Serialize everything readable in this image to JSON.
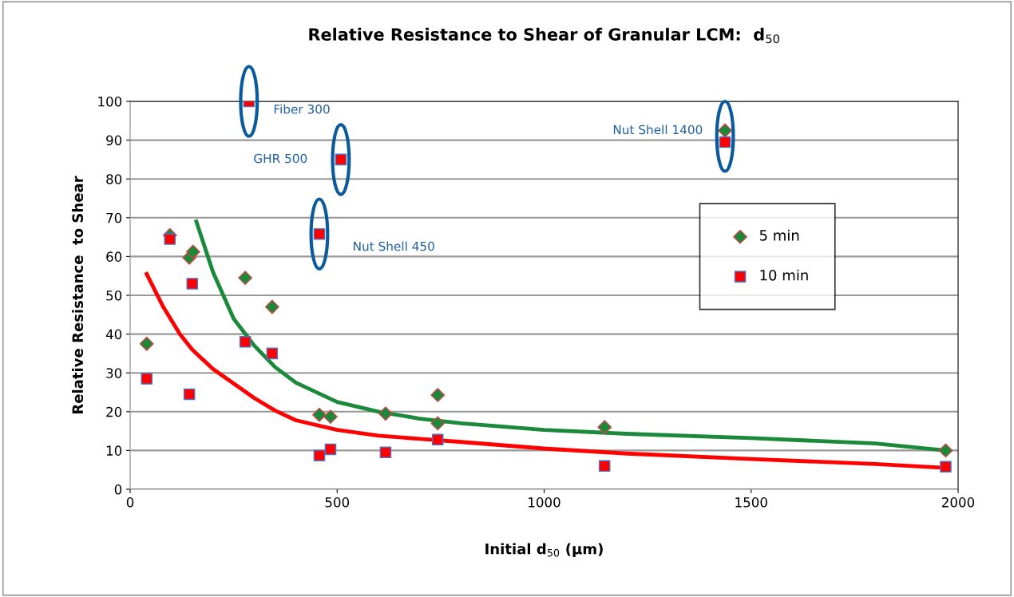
{
  "chart_data": {
    "type": "scatter",
    "title": "Relative Resistance to Shear of Granular LCM:  d$_{50}$",
    "xlabel": "Initial d$_{50}$ (μm)",
    "ylabel": "Relative Resistance  to Shear",
    "xlim": [
      0,
      2000
    ],
    "xticks": [
      0,
      500,
      1000,
      1500,
      2000
    ],
    "ylim": [
      0,
      100
    ],
    "yticks": [
      0,
      10,
      20,
      30,
      40,
      50,
      60,
      70,
      80,
      90,
      100
    ],
    "grid": "y",
    "legend": "center right",
    "series": [
      {
        "name": "5 min",
        "color": "#1a8a3a",
        "marker": "diamond",
        "x": [
          40,
          96,
          143,
          152,
          278,
          287,
          343,
          457,
          484,
          509,
          617,
          743,
          743,
          1146,
          1437,
          1970
        ],
        "values": [
          37.5,
          65.5,
          59.7,
          61.2,
          54.5,
          null,
          47,
          19.2,
          18.7,
          null,
          19.5,
          24.3,
          17,
          16,
          92.5,
          10
        ]
      },
      {
        "name": "10 min",
        "color": "#ff0000",
        "marker": "square",
        "x": [
          40,
          96,
          143,
          150,
          278,
          287,
          343,
          457,
          457,
          484,
          509,
          617,
          743,
          1146,
          1437,
          1970
        ],
        "values": [
          28.5,
          64.5,
          24.5,
          53,
          38,
          100,
          35,
          65.8,
          8.7,
          10.3,
          85,
          9.5,
          12.8,
          6,
          89.5,
          5.8
        ]
      },
      {
        "type": "line",
        "color": "#1a8a3a",
        "marker": "none",
        "x": [
          160,
          200,
          250,
          300,
          350,
          400,
          500,
          600,
          700,
          800,
          1000,
          1200,
          1500,
          1800,
          1970
        ],
        "values": [
          69,
          56,
          44,
          37,
          31.5,
          27.5,
          22.5,
          20,
          18.2,
          17,
          15.3,
          14.3,
          13.2,
          11.8,
          10
        ]
      },
      {
        "type": "line",
        "color": "#ff0000",
        "marker": "none",
        "x": [
          40,
          80,
          120,
          150,
          200,
          300,
          350,
          400,
          500,
          600,
          700,
          800,
          1000,
          1200,
          1500,
          1800,
          1970
        ],
        "values": [
          55.5,
          47,
          40,
          36,
          31,
          23.5,
          20.3,
          17.8,
          15.3,
          13.8,
          13,
          12.2,
          10.5,
          9.2,
          7.8,
          6.5,
          5.5
        ]
      }
    ],
    "annotations": [
      {
        "text": "Fiber 300",
        "x": 287,
        "y": 100
      },
      {
        "text": "GHR 500",
        "x": 509,
        "y": 85
      },
      {
        "text": "Nut Shell 450",
        "x": 457,
        "y": 65.8
      },
      {
        "text": "Nut Shell 1400",
        "x": 1437,
        "y": 91
      }
    ]
  }
}
